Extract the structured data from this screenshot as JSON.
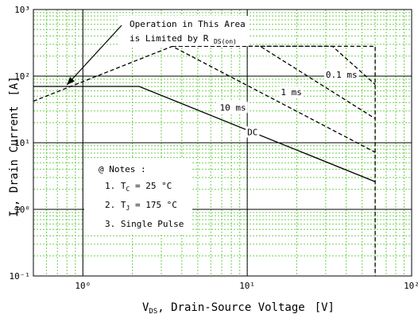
{
  "chart_data": {
    "type": "line",
    "xscale": "log",
    "yscale": "log",
    "xlim": [
      0.5,
      100
    ],
    "ylim": [
      0.1,
      1000
    ],
    "x_ticks": [
      "10⁰",
      "10¹",
      "10²"
    ],
    "y_ticks": [
      "10⁻¹",
      "10⁰",
      "10¹",
      "10²",
      "10³"
    ],
    "xlabel": {
      "symbol": "V",
      "sub": "DS",
      "text": ", Drain-Source Voltage",
      "unit": "[V]"
    },
    "ylabel": {
      "symbol": "I",
      "sub": "D",
      "text": ", Drain Current",
      "unit": "[A]"
    },
    "grid": true,
    "series": [
      {
        "name": "DC",
        "style": "solid",
        "x": [
          0.5,
          2.2,
          60
        ],
        "y": [
          70,
          70,
          2.6
        ]
      },
      {
        "name": "10 ms",
        "style": "dashed",
        "x": [
          0.5,
          3.5,
          60
        ],
        "y": [
          42,
          280,
          7.2
        ]
      },
      {
        "name": "1 ms",
        "style": "dashed",
        "x": [
          3.5,
          12,
          60
        ],
        "y": [
          280,
          280,
          23
        ]
      },
      {
        "name": "0.1 ms",
        "style": "dashed",
        "x": [
          12,
          33,
          60
        ],
        "y": [
          280,
          280,
          75
        ]
      },
      {
        "name": "",
        "style": "dashed",
        "x": [
          3.5,
          60,
          60
        ],
        "y": [
          280,
          280,
          0.1
        ]
      }
    ],
    "labels": [
      {
        "key": "lbl_01",
        "text": "0.1 ms",
        "x": 30,
        "y": 105
      },
      {
        "key": "lbl_1",
        "text": "1 ms",
        "x": 16,
        "y": 58
      },
      {
        "key": "lbl_10",
        "text": "10 ms",
        "x": 6.8,
        "y": 34
      },
      {
        "key": "lbl_dc",
        "text": "DC",
        "x": 10,
        "y": 14.5
      }
    ],
    "annotation": {
      "line1": "Operation in This Area",
      "line2": "is Limited by R",
      "line2_sub": "DS(on)",
      "arrow_target": {
        "x": 0.8,
        "y": 70
      }
    },
    "notes": {
      "title": "@ Notes :",
      "items": [
        {
          "prefix": "1. T",
          "sub": "C",
          "suffix": " = 25 °C"
        },
        {
          "prefix": "2. T",
          "sub": "J",
          "suffix": " = 175 °C"
        },
        {
          "prefix": "3. Single Pulse",
          "sub": "",
          "suffix": ""
        }
      ]
    }
  }
}
